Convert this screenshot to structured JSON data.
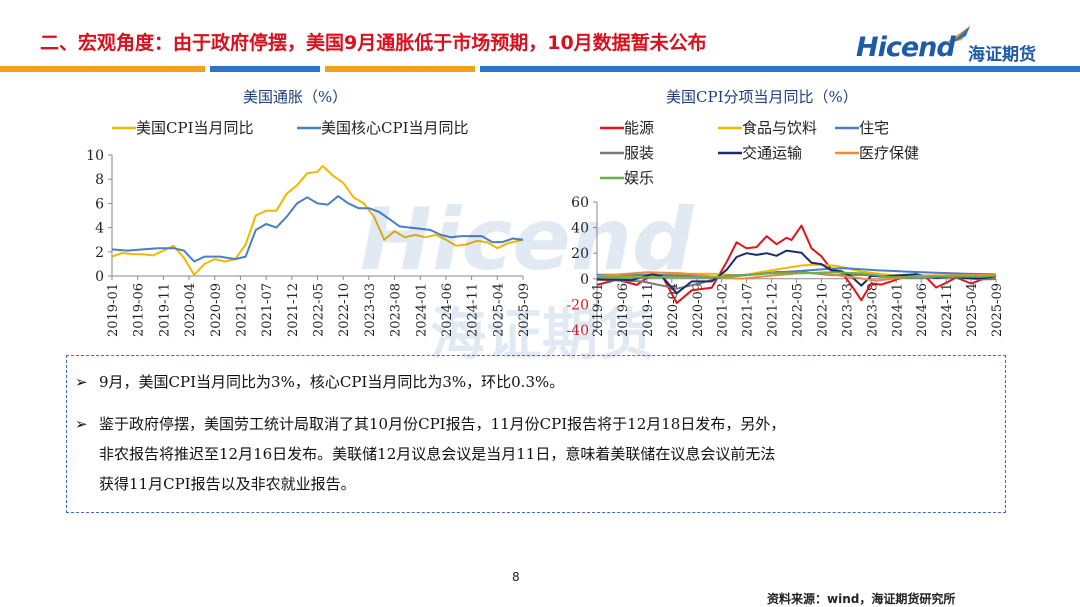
{
  "slide": {
    "title": "二、宏观角度：由于政府停摆，美国9月通胀低于市场预期，10月数据暂未公布",
    "page_number": "8",
    "source": "资料来源：wind，海证期货研究所"
  },
  "logo": {
    "brand": "Hicend",
    "mark": "®",
    "company": "海证期货"
  },
  "watermark": {
    "brand": "Hicend",
    "company": "海证期货"
  },
  "colors": {
    "title_red": "#d9101e",
    "brand_blue": "#1e5aa8",
    "bar_orange": "#f0a21f",
    "bar_blue": "#2d74c4",
    "bar_light": "#8fb6e0"
  },
  "notes": [
    {
      "lines": [
        "9月，美国CPI当月同比为3%，核心CPI当月同比为3%，环比0.3%。"
      ]
    },
    {
      "lines": [
        "鉴于政府停摆，美国劳工统计局取消了其10月份CPI报告，11月份CPI报告将于12月18日发布，另外，",
        "非农报告将推迟至12月16日发布。美联储12月议息会议是当月11日，意味着美联储在议息会议前无法",
        "获得11月CPI报告以及非农就业报告。"
      ]
    }
  ],
  "chart_data": [
    {
      "type": "line",
      "title": "美国通胀（%）",
      "xlabel": "",
      "ylabel": "",
      "ylim": [
        0,
        10
      ],
      "yticks": [
        "0",
        "2",
        "4",
        "6",
        "8",
        "10"
      ],
      "x_tick_labels": [
        "2019-01",
        "2019-06",
        "2019-11",
        "2020-04",
        "2020-09",
        "2021-02",
        "2021-07",
        "2021-12",
        "2022-05",
        "2022-10",
        "2023-03",
        "2023-08",
        "2024-01",
        "2024-06",
        "2024-11",
        "2025-04",
        "2025-09"
      ],
      "x_range": [
        "2019-01",
        "2025-09"
      ],
      "legend_position": "top",
      "series": [
        {
          "name": "美国CPI当月同比",
          "color": "#f2b800",
          "points": [
            [
              "2019-01",
              1.6
            ],
            [
              "2019-03",
              1.9
            ],
            [
              "2019-05",
              1.8
            ],
            [
              "2019-07",
              1.8
            ],
            [
              "2019-09",
              1.7
            ],
            [
              "2019-11",
              2.1
            ],
            [
              "2020-01",
              2.5
            ],
            [
              "2020-03",
              1.5
            ],
            [
              "2020-05",
              0.1
            ],
            [
              "2020-07",
              1.0
            ],
            [
              "2020-09",
              1.4
            ],
            [
              "2020-11",
              1.2
            ],
            [
              "2021-01",
              1.4
            ],
            [
              "2021-03",
              2.6
            ],
            [
              "2021-05",
              5.0
            ],
            [
              "2021-07",
              5.4
            ],
            [
              "2021-09",
              5.4
            ],
            [
              "2021-11",
              6.8
            ],
            [
              "2022-01",
              7.5
            ],
            [
              "2022-03",
              8.5
            ],
            [
              "2022-05",
              8.6
            ],
            [
              "2022-06",
              9.1
            ],
            [
              "2022-08",
              8.3
            ],
            [
              "2022-10",
              7.7
            ],
            [
              "2022-12",
              6.5
            ],
            [
              "2023-02",
              6.0
            ],
            [
              "2023-04",
              4.9
            ],
            [
              "2023-06",
              3.0
            ],
            [
              "2023-08",
              3.7
            ],
            [
              "2023-10",
              3.2
            ],
            [
              "2023-12",
              3.4
            ],
            [
              "2024-02",
              3.2
            ],
            [
              "2024-04",
              3.4
            ],
            [
              "2024-06",
              3.0
            ],
            [
              "2024-08",
              2.5
            ],
            [
              "2024-10",
              2.6
            ],
            [
              "2024-12",
              2.9
            ],
            [
              "2025-02",
              2.8
            ],
            [
              "2025-04",
              2.3
            ],
            [
              "2025-06",
              2.7
            ],
            [
              "2025-08",
              2.9
            ],
            [
              "2025-09",
              3.0
            ]
          ]
        },
        {
          "name": "美国核心CPI当月同比",
          "color": "#4a7fc1",
          "points": [
            [
              "2019-01",
              2.2
            ],
            [
              "2019-04",
              2.1
            ],
            [
              "2019-07",
              2.2
            ],
            [
              "2019-10",
              2.3
            ],
            [
              "2020-01",
              2.3
            ],
            [
              "2020-03",
              2.1
            ],
            [
              "2020-05",
              1.2
            ],
            [
              "2020-07",
              1.6
            ],
            [
              "2020-10",
              1.6
            ],
            [
              "2021-01",
              1.4
            ],
            [
              "2021-03",
              1.6
            ],
            [
              "2021-05",
              3.8
            ],
            [
              "2021-07",
              4.3
            ],
            [
              "2021-09",
              4.0
            ],
            [
              "2021-11",
              4.9
            ],
            [
              "2022-01",
              6.0
            ],
            [
              "2022-03",
              6.5
            ],
            [
              "2022-05",
              6.0
            ],
            [
              "2022-07",
              5.9
            ],
            [
              "2022-09",
              6.6
            ],
            [
              "2022-11",
              6.0
            ],
            [
              "2023-01",
              5.6
            ],
            [
              "2023-03",
              5.6
            ],
            [
              "2023-05",
              5.3
            ],
            [
              "2023-07",
              4.7
            ],
            [
              "2023-09",
              4.1
            ],
            [
              "2023-11",
              4.0
            ],
            [
              "2024-01",
              3.9
            ],
            [
              "2024-03",
              3.8
            ],
            [
              "2024-05",
              3.4
            ],
            [
              "2024-07",
              3.2
            ],
            [
              "2024-09",
              3.3
            ],
            [
              "2024-11",
              3.3
            ],
            [
              "2025-01",
              3.3
            ],
            [
              "2025-03",
              2.8
            ],
            [
              "2025-05",
              2.8
            ],
            [
              "2025-07",
              3.1
            ],
            [
              "2025-09",
              3.0
            ]
          ]
        }
      ]
    },
    {
      "type": "line",
      "title": "美国CPI分项当月同比（%）",
      "xlabel": "",
      "ylabel": "",
      "ylim": [
        -40,
        60
      ],
      "yticks": [
        "-40",
        "-20",
        "0",
        "20",
        "40",
        "60"
      ],
      "x_tick_labels": [
        "2019-01",
        "2019-06",
        "2019-11",
        "2020-04",
        "2020-09",
        "2021-02",
        "2021-07",
        "2021-12",
        "2022-05",
        "2022-10",
        "2023-03",
        "2023-08",
        "2024-01",
        "2024-06",
        "2024-11",
        "2025-04",
        "2025-09"
      ],
      "x_range": [
        "2019-01",
        "2025-09"
      ],
      "legend_position": "top",
      "series": [
        {
          "name": "能源",
          "color": "#e0141e",
          "points": [
            [
              "2019-01",
              -4.8
            ],
            [
              "2019-05",
              -0.6
            ],
            [
              "2019-09",
              -4.8
            ],
            [
              "2019-12",
              3.4
            ],
            [
              "2020-02",
              2.8
            ],
            [
              "2020-05",
              -18.9
            ],
            [
              "2020-08",
              -9.0
            ],
            [
              "2020-12",
              -7.0
            ],
            [
              "2021-03",
              13.2
            ],
            [
              "2021-05",
              28.5
            ],
            [
              "2021-07",
              23.8
            ],
            [
              "2021-09",
              24.8
            ],
            [
              "2021-11",
              33.3
            ],
            [
              "2022-01",
              27.0
            ],
            [
              "2022-03",
              32.0
            ],
            [
              "2022-04",
              30.3
            ],
            [
              "2022-06",
              41.6
            ],
            [
              "2022-08",
              23.8
            ],
            [
              "2022-10",
              17.6
            ],
            [
              "2022-12",
              7.3
            ],
            [
              "2023-02",
              5.2
            ],
            [
              "2023-04",
              -5.1
            ],
            [
              "2023-06",
              -16.7
            ],
            [
              "2023-08",
              -3.6
            ],
            [
              "2023-10",
              -4.5
            ],
            [
              "2023-12",
              -2.0
            ],
            [
              "2024-03",
              2.1
            ],
            [
              "2024-05",
              3.7
            ],
            [
              "2024-07",
              1.1
            ],
            [
              "2024-09",
              -6.8
            ],
            [
              "2024-11",
              -3.2
            ],
            [
              "2025-01",
              1.0
            ],
            [
              "2025-04",
              -3.7
            ],
            [
              "2025-06",
              -0.8
            ],
            [
              "2025-09",
              2.8
            ]
          ]
        },
        {
          "name": "食品与饮料",
          "color": "#f2b800",
          "points": [
            [
              "2019-01",
              1.6
            ],
            [
              "2019-09",
              1.8
            ],
            [
              "2020-04",
              3.5
            ],
            [
              "2020-08",
              4.0
            ],
            [
              "2021-01",
              3.8
            ],
            [
              "2021-06",
              2.4
            ],
            [
              "2021-10",
              5.3
            ],
            [
              "2022-02",
              7.9
            ],
            [
              "2022-06",
              10.4
            ],
            [
              "2022-09",
              11.2
            ],
            [
              "2023-01",
              10.1
            ],
            [
              "2023-06",
              5.7
            ],
            [
              "2023-12",
              2.7
            ],
            [
              "2024-06",
              2.2
            ],
            [
              "2024-12",
              2.5
            ],
            [
              "2025-06",
              3.0
            ],
            [
              "2025-09",
              3.1
            ]
          ]
        },
        {
          "name": "住宅",
          "color": "#4a7fc1",
          "points": [
            [
              "2019-01",
              3.2
            ],
            [
              "2019-12",
              3.2
            ],
            [
              "2020-06",
              2.4
            ],
            [
              "2021-01",
              1.5
            ],
            [
              "2021-06",
              2.6
            ],
            [
              "2021-12",
              4.8
            ],
            [
              "2022-06",
              6.2
            ],
            [
              "2022-12",
              8.0
            ],
            [
              "2023-03",
              8.2
            ],
            [
              "2023-09",
              6.7
            ],
            [
              "2024-03",
              5.6
            ],
            [
              "2024-09",
              4.8
            ],
            [
              "2025-03",
              4.0
            ],
            [
              "2025-09",
              3.6
            ]
          ]
        },
        {
          "name": "服装",
          "color": "#7a7a7a",
          "points": [
            [
              "2019-01",
              -0.7
            ],
            [
              "2019-10",
              -2.0
            ],
            [
              "2020-05",
              -7.7
            ],
            [
              "2020-10",
              -3.2
            ],
            [
              "2021-03",
              2.5
            ],
            [
              "2021-09",
              3.4
            ],
            [
              "2022-01",
              5.3
            ],
            [
              "2022-06",
              5.2
            ],
            [
              "2022-12",
              2.9
            ],
            [
              "2023-06",
              3.1
            ],
            [
              "2023-12",
              1.0
            ],
            [
              "2024-06",
              0.9
            ],
            [
              "2024-12",
              1.2
            ],
            [
              "2025-06",
              -0.5
            ],
            [
              "2025-09",
              -0.2
            ]
          ]
        },
        {
          "name": "交通运输",
          "color": "#1c2d6b",
          "points": [
            [
              "2019-01",
              -0.3
            ],
            [
              "2019-08",
              -1.0
            ],
            [
              "2019-12",
              3.5
            ],
            [
              "2020-02",
              2.0
            ],
            [
              "2020-05",
              -11.3
            ],
            [
              "2020-08",
              -2.0
            ],
            [
              "2020-12",
              -2.0
            ],
            [
              "2021-03",
              7.0
            ],
            [
              "2021-05",
              17.0
            ],
            [
              "2021-07",
              20.0
            ],
            [
              "2021-09",
              18.7
            ],
            [
              "2021-11",
              20.0
            ],
            [
              "2022-01",
              18.0
            ],
            [
              "2022-03",
              22.0
            ],
            [
              "2022-06",
              20.3
            ],
            [
              "2022-08",
              12.5
            ],
            [
              "2022-10",
              11.5
            ],
            [
              "2022-12",
              6.6
            ],
            [
              "2023-02",
              5.9
            ],
            [
              "2023-04",
              1.9
            ],
            [
              "2023-06",
              -5.3
            ],
            [
              "2023-08",
              2.3
            ],
            [
              "2023-10",
              2.0
            ],
            [
              "2024-01",
              2.6
            ],
            [
              "2024-05",
              3.5
            ],
            [
              "2024-09",
              0.7
            ],
            [
              "2024-12",
              2.0
            ],
            [
              "2025-03",
              0.6
            ],
            [
              "2025-06",
              0.5
            ],
            [
              "2025-09",
              1.8
            ]
          ]
        },
        {
          "name": "医疗保健",
          "color": "#ee8a3a",
          "points": [
            [
              "2019-01",
              2.2
            ],
            [
              "2019-11",
              5.1
            ],
            [
              "2020-06",
              4.4
            ],
            [
              "2020-12",
              1.8
            ],
            [
              "2021-06",
              0.0
            ],
            [
              "2021-12",
              2.5
            ],
            [
              "2022-06",
              4.5
            ],
            [
              "2022-10",
              4.2
            ],
            [
              "2023-04",
              1.4
            ],
            [
              "2023-09",
              -1.5
            ],
            [
              "2024-01",
              0.5
            ],
            [
              "2024-06",
              2.5
            ],
            [
              "2024-12",
              2.7
            ],
            [
              "2025-06",
              3.0
            ],
            [
              "2025-09",
              3.3
            ]
          ]
        },
        {
          "name": "娱乐",
          "color": "#6ab04c",
          "points": [
            [
              "2019-01",
              1.4
            ],
            [
              "2019-10",
              1.1
            ],
            [
              "2020-05",
              1.4
            ],
            [
              "2020-12",
              1.0
            ],
            [
              "2021-06",
              2.5
            ],
            [
              "2021-12",
              4.3
            ],
            [
              "2022-06",
              4.4
            ],
            [
              "2022-12",
              5.1
            ],
            [
              "2023-06",
              4.2
            ],
            [
              "2023-12",
              1.3
            ],
            [
              "2024-06",
              1.4
            ],
            [
              "2024-12",
              1.9
            ],
            [
              "2025-06",
              1.6
            ],
            [
              "2025-09",
              2.4
            ]
          ]
        }
      ]
    }
  ]
}
